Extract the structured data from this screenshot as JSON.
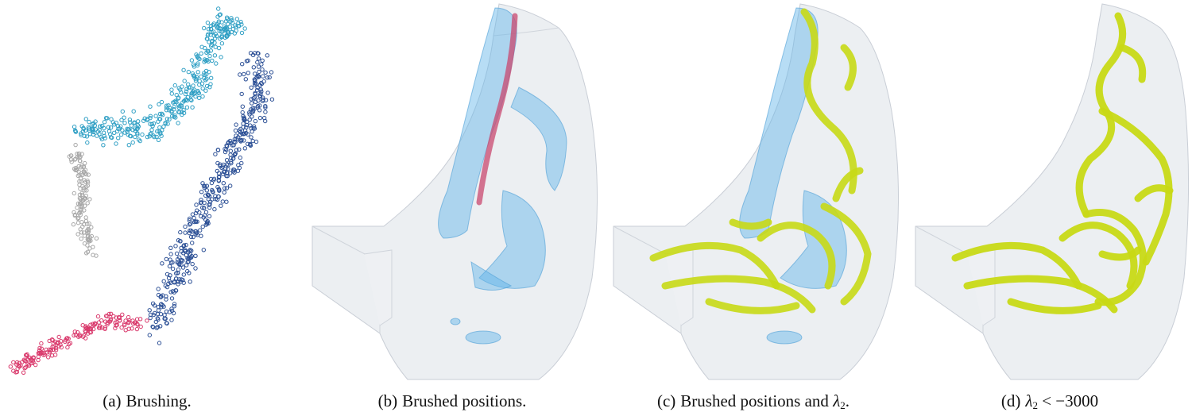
{
  "captions": {
    "a": {
      "label": "(a)",
      "text": "Brushing."
    },
    "b": {
      "label": "(b)",
      "text": "Brushed positions."
    },
    "c": {
      "label": "(c)",
      "text": "Brushed positions and",
      "symbol": "λ",
      "subscript": "2",
      "end": "."
    },
    "d": {
      "label": "(d)",
      "symbol": "λ",
      "subscript": "2",
      "relation": " < −3000"
    }
  },
  "colors": {
    "cyan": "#2f9fc4",
    "navy": "#2b4f95",
    "gray": "#a7a7a7",
    "pink": "#d9386b",
    "blue_volume": "#5fb3e8",
    "vortex_yellow": "#c8d916",
    "housing": "#e6e9ee",
    "brushed_core": "#c9486f"
  }
}
